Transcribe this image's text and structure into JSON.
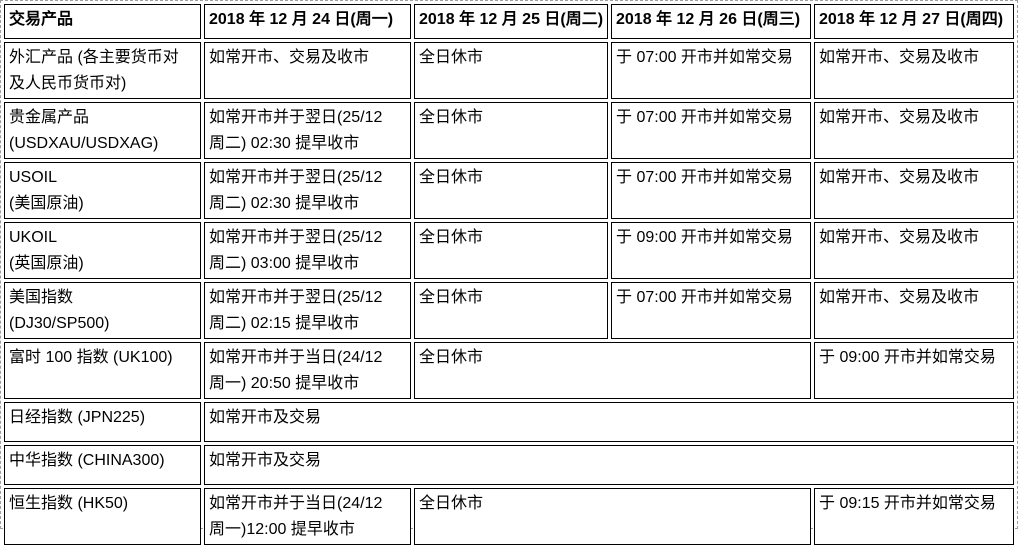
{
  "table": {
    "columns": [
      "交易产品",
      "2018 年 12 月 24 日(周一)",
      "2018 年 12 月 25 日(周二)",
      "2018 年 12 月 26 日(周三)",
      "2018 年 12 月 27 日(周四)"
    ],
    "rows": [
      {
        "cells": [
          {
            "text": "外汇产品 (各主要货币对\n及人民币货币对)"
          },
          {
            "text": "如常开市、交易及收市"
          },
          {
            "text": "全日休市"
          },
          {
            "text": "于 07:00 开市并如常交易"
          },
          {
            "text": "如常开市、交易及收市"
          }
        ]
      },
      {
        "cells": [
          {
            "text": "贵金属产品\n(USDXAU/USDXAG)"
          },
          {
            "text": "如常开市并于翌日(25/12\n周二) 02:30 提早收市"
          },
          {
            "text": "全日休市"
          },
          {
            "text": "于 07:00 开市并如常交易"
          },
          {
            "text": "如常开市、交易及收市"
          }
        ]
      },
      {
        "cells": [
          {
            "text": "USOIL\n(美国原油)"
          },
          {
            "text": "如常开市并于翌日(25/12\n周二) 02:30 提早收市"
          },
          {
            "text": "全日休市"
          },
          {
            "text": "于 07:00 开市并如常交易"
          },
          {
            "text": "如常开市、交易及收市"
          }
        ]
      },
      {
        "cells": [
          {
            "text": "UKOIL\n(英国原油)"
          },
          {
            "text": "如常开市并于翌日(25/12\n周二) 03:00 提早收市"
          },
          {
            "text": "全日休市"
          },
          {
            "text": "于 09:00 开市并如常交易"
          },
          {
            "text": "如常开市、交易及收市"
          }
        ]
      },
      {
        "cells": [
          {
            "text": "美国指数\n(DJ30/SP500)"
          },
          {
            "text": "如常开市并于翌日(25/12\n周二) 02:15 提早收市"
          },
          {
            "text": "全日休市"
          },
          {
            "text": "于 07:00 开市并如常交易"
          },
          {
            "text": "如常开市、交易及收市"
          }
        ]
      },
      {
        "cells": [
          {
            "text": "富时 100 指数 (UK100)"
          },
          {
            "text": "如常开市并于当日(24/12\n周一) 20:50 提早收市"
          },
          {
            "text": "全日休市",
            "colspan": 2
          },
          {
            "text": "于 09:00 开市并如常交易"
          }
        ]
      },
      {
        "cells": [
          {
            "text": "日经指数 (JPN225)"
          },
          {
            "text": "如常开市及交易",
            "colspan": 4
          }
        ]
      },
      {
        "cells": [
          {
            "text": "中华指数 (CHINA300)"
          },
          {
            "text": "如常开市及交易",
            "colspan": 4
          }
        ]
      },
      {
        "cells": [
          {
            "text": "恒生指数 (HK50)"
          },
          {
            "text": "如常开市并于当日(24/12\n周一)12:00 提早收市"
          },
          {
            "text": "全日休市",
            "colspan": 2
          },
          {
            "text": "于 09:15 开市并如常交易"
          }
        ]
      }
    ]
  },
  "colors": {
    "cell_border": "#000000",
    "text": "#000000",
    "page_outline": "#9e9e9e",
    "background": "#ffffff"
  }
}
